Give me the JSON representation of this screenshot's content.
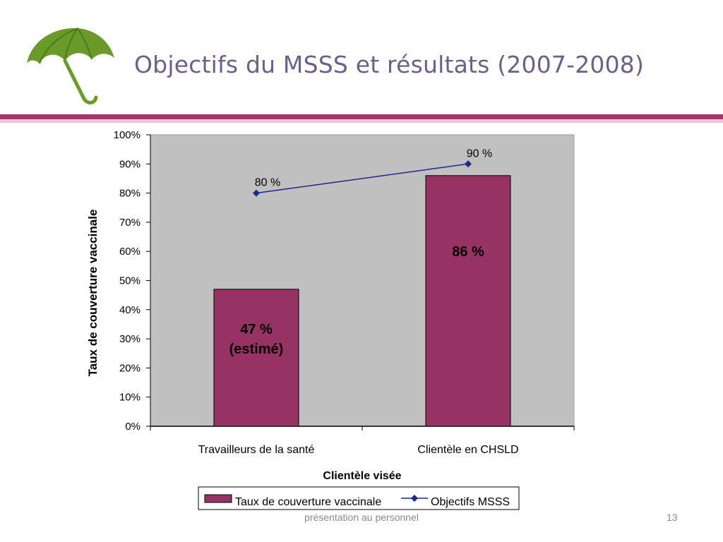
{
  "slide": {
    "title": "Objectifs du MSSS et résultats (2007-2008)",
    "footer": "présentation au personnel",
    "page_number": "13",
    "accent_color": "#a8336c",
    "accent_light": "#ecc7d8",
    "title_color": "#6b5f8c",
    "logo_icon": "green-umbrella-icon"
  },
  "chart_data": {
    "type": "bar",
    "categories": [
      "Travailleurs  de la santé",
      "Clientèle  en CHSLD"
    ],
    "series": [
      {
        "name": "Taux de couverture vaccinale",
        "kind": "bar",
        "values": [
          47,
          86
        ],
        "color": "#963264",
        "labels": [
          "47 %\n(estimé)",
          "86 %"
        ]
      },
      {
        "name": "Objectifs MSSS",
        "kind": "line",
        "values": [
          80,
          90
        ],
        "color": "#1a2a8a",
        "labels": [
          "80 %",
          "90 %"
        ]
      }
    ],
    "xlabel": "Clientèle visée",
    "ylabel": "Taux de couverture  vaccinale",
    "ylim": [
      0,
      100
    ],
    "yticks": [
      "0%",
      "10%",
      "20%",
      "30%",
      "40%",
      "50%",
      "60%",
      "70%",
      "80%",
      "90%",
      "100%"
    ],
    "plot_background": "#c0c0c0",
    "grid": false,
    "legend_position": "bottom"
  }
}
